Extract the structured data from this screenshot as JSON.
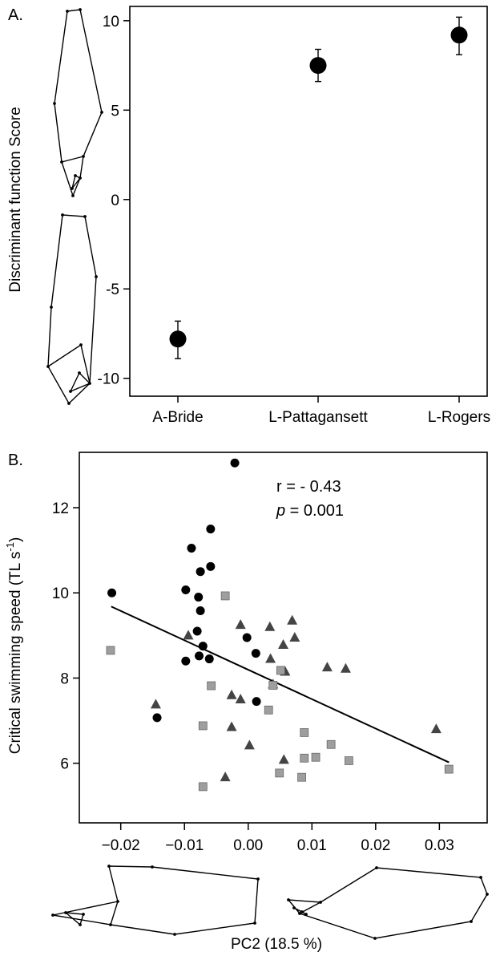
{
  "panel_a_label": "A.",
  "panel_b_label": "B.",
  "chart_data": [
    {
      "type": "scatter",
      "panel": "A.",
      "categories": [
        "A-Bride",
        "L-Pattagansett",
        "L-Rogers"
      ],
      "values": [
        -7.8,
        7.5,
        9.2
      ],
      "error_low": [
        -8.9,
        6.6,
        8.1
      ],
      "error_high": [
        -6.8,
        8.4,
        10.2
      ],
      "ylabel": "Discriminant function Score",
      "ylim": [
        -11,
        10.8
      ],
      "yticks": [
        -10,
        -5,
        0,
        5,
        10
      ],
      "ytick_labels": [
        "-10",
        "-5",
        "0",
        "5",
        "10"
      ],
      "marker_color": "#000000"
    },
    {
      "type": "scatter",
      "panel": "B.",
      "xlabel": "PC2 (18.5 %)",
      "ylabel": "Critical swimming speed (TL s-1)",
      "ylabel_main": "Critical swimming speed (TL s",
      "ylabel_sup": "-1",
      "ylabel_close": ")",
      "xlim": [
        -0.0265,
        0.0375
      ],
      "ylim": [
        4.6,
        13.3
      ],
      "xticks": [
        -0.02,
        -0.01,
        0.0,
        0.01,
        0.02,
        0.03
      ],
      "xtick_labels": [
        "−0.02",
        "−0.01",
        "0.00",
        "0.01",
        "0.02",
        "0.03"
      ],
      "yticks": [
        6,
        8,
        10,
        12
      ],
      "ytick_labels": [
        "6",
        "8",
        "10",
        "12"
      ],
      "annotation_r": "r = - 0.43",
      "annotation_p_italic": "p",
      "annotation_p_rest": " = 0.001",
      "regression_line": {
        "x": [
          -0.0215,
          0.0315
        ],
        "y": [
          9.68,
          6.02
        ]
      },
      "colors": {
        "circle": "#000000",
        "triangle": "#444444",
        "square": "#9e9e9e",
        "square_edge": "#6a6a6a"
      },
      "series": [
        {
          "marker": "circle",
          "points": [
            [
              -0.0021,
              13.05
            ],
            [
              -0.0059,
              11.5
            ],
            [
              -0.0089,
              11.05
            ],
            [
              -0.0059,
              10.62
            ],
            [
              -0.0075,
              10.5
            ],
            [
              -0.0214,
              10.0
            ],
            [
              -0.0098,
              10.07
            ],
            [
              -0.0078,
              9.9
            ],
            [
              -0.0075,
              9.58
            ],
            [
              -0.008,
              9.1
            ],
            [
              -0.0002,
              8.95
            ],
            [
              -0.0071,
              8.75
            ],
            [
              0.0012,
              8.58
            ],
            [
              -0.0077,
              8.52
            ],
            [
              -0.0098,
              8.4
            ],
            [
              -0.0061,
              8.45
            ],
            [
              0.0013,
              7.45
            ],
            [
              -0.0143,
              7.07
            ]
          ]
        },
        {
          "marker": "triangle",
          "points": [
            [
              -0.0094,
              9.0
            ],
            [
              -0.0012,
              9.25
            ],
            [
              0.0034,
              9.2
            ],
            [
              0.0069,
              9.35
            ],
            [
              0.0055,
              8.78
            ],
            [
              0.0073,
              8.95
            ],
            [
              0.0035,
              8.45
            ],
            [
              0.0058,
              8.15
            ],
            [
              0.0124,
              8.25
            ],
            [
              0.0153,
              8.22
            ],
            [
              -0.0145,
              7.38
            ],
            [
              -0.0026,
              7.6
            ],
            [
              -0.0012,
              7.5
            ],
            [
              0.0039,
              7.85
            ],
            [
              -0.0026,
              6.85
            ],
            [
              0.0002,
              6.42
            ],
            [
              0.0056,
              6.08
            ],
            [
              0.0295,
              6.8
            ],
            [
              -0.0036,
              5.67
            ]
          ]
        },
        {
          "marker": "square",
          "points": [
            [
              -0.0216,
              8.65
            ],
            [
              -0.0036,
              9.93
            ],
            [
              0.0051,
              8.18
            ],
            [
              0.0039,
              7.83
            ],
            [
              -0.0058,
              7.82
            ],
            [
              0.0032,
              7.25
            ],
            [
              -0.0071,
              6.88
            ],
            [
              0.0088,
              6.72
            ],
            [
              0.013,
              6.44
            ],
            [
              0.0106,
              6.14
            ],
            [
              0.0088,
              6.12
            ],
            [
              0.0158,
              6.06
            ],
            [
              0.0049,
              5.77
            ],
            [
              0.0084,
              5.67
            ],
            [
              -0.0071,
              5.45
            ],
            [
              0.0315,
              5.86
            ]
          ]
        }
      ]
    }
  ]
}
